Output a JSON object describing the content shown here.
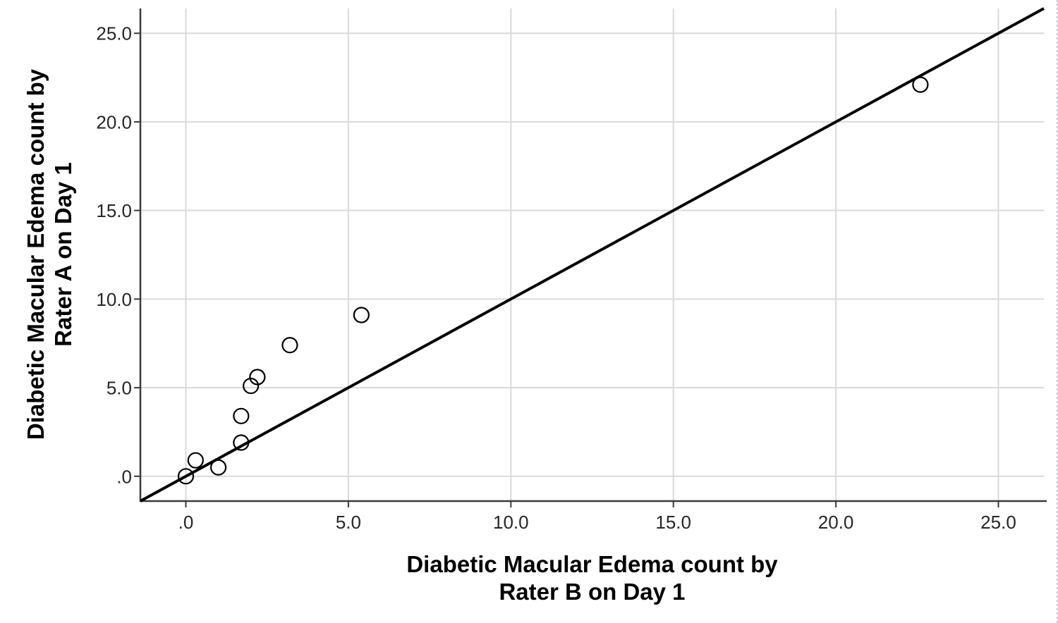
{
  "chart_data": {
    "type": "scatter",
    "title": "",
    "xlabel": "Diabetic Macular Edema count by Rater B on Day 1",
    "ylabel": "Diabetic Macular Edema count by Rater A on Day 1",
    "xlabel_lines": [
      "Diabetic Macular Edema count by",
      "Rater B on Day 1"
    ],
    "ylabel_lines": [
      "Diabetic Macular Edema count by",
      "Rater A on Day 1"
    ],
    "xlim": [
      -1.4,
      26.4
    ],
    "ylim": [
      -1.4,
      26.4
    ],
    "x_ticks": [
      {
        "value": 0,
        "label": ".0"
      },
      {
        "value": 5,
        "label": "5.0"
      },
      {
        "value": 10,
        "label": "10.0"
      },
      {
        "value": 15,
        "label": "15.0"
      },
      {
        "value": 20,
        "label": "20.0"
      },
      {
        "value": 25,
        "label": "25.0"
      }
    ],
    "y_ticks": [
      {
        "value": 0,
        "label": ".0"
      },
      {
        "value": 5,
        "label": "5.0"
      },
      {
        "value": 10,
        "label": "10.0"
      },
      {
        "value": 15,
        "label": "15.0"
      },
      {
        "value": 20,
        "label": "20.0"
      },
      {
        "value": 25,
        "label": "25.0"
      }
    ],
    "points": [
      {
        "x": 0.0,
        "y": 0.0
      },
      {
        "x": 0.3,
        "y": 0.9
      },
      {
        "x": 1.0,
        "y": 0.5
      },
      {
        "x": 1.7,
        "y": 1.9
      },
      {
        "x": 1.7,
        "y": 3.4
      },
      {
        "x": 2.0,
        "y": 5.1
      },
      {
        "x": 2.2,
        "y": 5.6
      },
      {
        "x": 3.2,
        "y": 7.4
      },
      {
        "x": 5.4,
        "y": 9.1
      },
      {
        "x": 22.6,
        "y": 22.1
      }
    ],
    "reference_line": {
      "kind": "identity",
      "from": [
        -1.4,
        -1.4
      ],
      "to": [
        26.4,
        26.4
      ]
    },
    "grid": true,
    "legend": "none",
    "marker": {
      "shape": "open-circle",
      "radius_px": 10.5
    },
    "colors": {
      "background": "#ffffff",
      "grid": "#d9d9d9",
      "axis": "#3a3a3a",
      "tick_label": "#262626",
      "axis_title": "#000000",
      "marker_stroke": "#000000",
      "reference_line": "#000000",
      "selection_border": "#a9b1d3"
    }
  }
}
